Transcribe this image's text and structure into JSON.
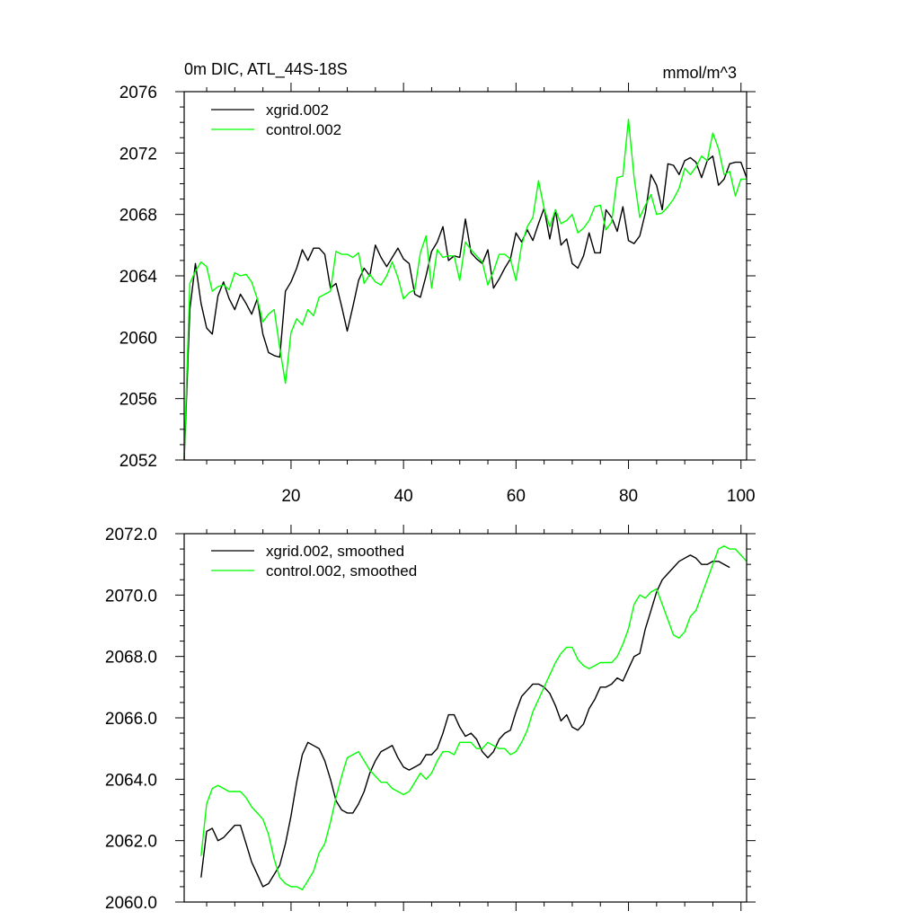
{
  "chart_data": [
    {
      "type": "line",
      "title": "0m DIC, ATL_44S-18S",
      "units": "mmol/m^3",
      "xlim": [
        1,
        101
      ],
      "ylim": [
        2052,
        2076
      ],
      "xticks": [
        20,
        40,
        60,
        80,
        100
      ],
      "xtick_labels": [
        "20",
        "40",
        "60",
        "80",
        "100"
      ],
      "yticks": [
        2052,
        2056,
        2060,
        2064,
        2068,
        2072,
        2076
      ],
      "ytick_labels": [
        "2052",
        "2056",
        "2060",
        "2064",
        "2068",
        "2072",
        "2076"
      ],
      "legend_position": "top-left",
      "series": [
        {
          "name": "xgrid.002",
          "color": "#000000",
          "x_start": 1,
          "values": [
            2052.0,
            2061.8,
            2064.8,
            2062.2,
            2060.6,
            2060.2,
            2062.7,
            2063.6,
            2062.5,
            2061.8,
            2062.8,
            2062.2,
            2061.5,
            2062.5,
            2060.2,
            2059.0,
            2058.8,
            2058.7,
            2063.0,
            2063.6,
            2064.5,
            2065.7,
            2065.0,
            2065.8,
            2065.8,
            2065.4,
            2063.2,
            2063.5,
            2062.0,
            2060.4,
            2062.0,
            2063.7,
            2064.5,
            2064.0,
            2066.0,
            2065.2,
            2064.6,
            2065.2,
            2065.8,
            2065.1,
            2064.8,
            2062.8,
            2062.6,
            2064.0,
            2065.6,
            2066.2,
            2067.2,
            2065.0,
            2065.3,
            2065.2,
            2067.7,
            2065.5,
            2065.1,
            2064.8,
            2065.7,
            2063.2,
            2063.8,
            2064.5,
            2065.1,
            2066.8,
            2066.2,
            2067.0,
            2066.3,
            2067.4,
            2068.4,
            2066.4,
            2068.3,
            2066.0,
            2066.4,
            2064.8,
            2064.5,
            2065.3,
            2066.8,
            2065.5,
            2065.5,
            2068.3,
            2067.8,
            2066.9,
            2068.5,
            2066.3,
            2066.1,
            2066.6,
            2068.1,
            2070.6,
            2069.9,
            2068.3,
            2071.3,
            2071.2,
            2070.6,
            2071.5,
            2071.7,
            2071.4,
            2070.4,
            2071.5,
            2071.8,
            2069.9,
            2070.3,
            2071.3,
            2071.4,
            2071.4,
            2070.4
          ]
        },
        {
          "name": "control.002",
          "color": "#00ff00",
          "x_start": 1,
          "values": [
            2052.2,
            2063.5,
            2064.3,
            2064.9,
            2064.6,
            2063.0,
            2063.3,
            2063.4,
            2063.1,
            2064.2,
            2064.0,
            2064.1,
            2063.6,
            2062.5,
            2061.0,
            2061.5,
            2061.8,
            2059.3,
            2057.0,
            2060.3,
            2061.2,
            2060.8,
            2061.8,
            2061.4,
            2062.6,
            2062.8,
            2063.0,
            2065.6,
            2065.4,
            2065.4,
            2065.2,
            2065.5,
            2063.5,
            2064.1,
            2063.6,
            2063.4,
            2064.0,
            2064.9,
            2063.9,
            2062.5,
            2062.9,
            2063.1,
            2065.5,
            2066.6,
            2063.2,
            2065.7,
            2065.2,
            2065.3,
            2065.3,
            2063.7,
            2066.2,
            2065.7,
            2065.3,
            2064.9,
            2063.4,
            2064.3,
            2065.4,
            2065.4,
            2065.1,
            2063.7,
            2066.0,
            2067.2,
            2067.8,
            2070.2,
            2068.4,
            2067.2,
            2068.3,
            2067.4,
            2067.6,
            2068.0,
            2066.8,
            2067.1,
            2067.6,
            2068.5,
            2068.6,
            2067.0,
            2067.5,
            2070.4,
            2070.5,
            2074.2,
            2070.4,
            2067.8,
            2068.6,
            2069.3,
            2068.0,
            2068.1,
            2068.5,
            2069.0,
            2069.7,
            2071.0,
            2070.6,
            2071.1,
            2071.8,
            2071.5,
            2073.3,
            2072.3,
            2070.6,
            2070.8,
            2069.2,
            2070.3,
            2070.3
          ]
        }
      ]
    },
    {
      "type": "line",
      "title": "",
      "xlim": [
        1,
        101
      ],
      "ylim": [
        2060.0,
        2072.0
      ],
      "xticks": [
        20,
        40,
        60,
        80,
        100
      ],
      "yticks": [
        2060.0,
        2062.0,
        2064.0,
        2066.0,
        2068.0,
        2070.0,
        2072.0
      ],
      "ytick_labels": [
        "2060.0",
        "2062.0",
        "2064.0",
        "2066.0",
        "2068.0",
        "2070.0",
        "2072.0"
      ],
      "legend_position": "top-left",
      "series": [
        {
          "name": "xgrid.002, smoothed",
          "color": "#000000",
          "x_start": 4,
          "values": [
            2060.8,
            2062.3,
            2062.4,
            2062.0,
            2062.1,
            2062.3,
            2062.5,
            2062.5,
            2061.9,
            2061.3,
            2060.9,
            2060.5,
            2060.6,
            2060.9,
            2061.2,
            2061.9,
            2062.8,
            2063.9,
            2064.8,
            2065.2,
            2065.1,
            2065.0,
            2064.6,
            2064.0,
            2063.3,
            2063.0,
            2062.9,
            2062.9,
            2063.2,
            2063.6,
            2064.2,
            2064.6,
            2064.9,
            2065.0,
            2065.1,
            2064.7,
            2064.4,
            2064.3,
            2064.4,
            2064.5,
            2064.8,
            2064.8,
            2065.0,
            2065.5,
            2066.1,
            2066.1,
            2065.7,
            2065.4,
            2065.5,
            2065.3,
            2064.9,
            2064.7,
            2064.9,
            2065.3,
            2065.5,
            2065.6,
            2066.2,
            2066.7,
            2066.9,
            2067.1,
            2067.1,
            2067.0,
            2066.8,
            2066.4,
            2065.9,
            2066.1,
            2065.7,
            2065.6,
            2065.8,
            2066.3,
            2066.6,
            2067.0,
            2067.0,
            2067.1,
            2067.3,
            2067.2,
            2067.6,
            2068.0,
            2068.1,
            2068.9,
            2069.5,
            2070.1,
            2070.5,
            2070.7,
            2070.9,
            2071.1,
            2071.2,
            2071.3,
            2071.2,
            2071.0,
            2071.0,
            2071.1,
            2071.1,
            2071.0,
            2070.9
          ]
        },
        {
          "name": "control.002, smoothed",
          "color": "#00ff00",
          "x_start": 4,
          "values": [
            2061.5,
            2063.2,
            2063.7,
            2063.8,
            2063.7,
            2063.6,
            2063.6,
            2063.6,
            2063.4,
            2063.1,
            2062.9,
            2062.7,
            2062.2,
            2061.4,
            2060.8,
            2060.6,
            2060.5,
            2060.5,
            2060.4,
            2060.7,
            2061.0,
            2061.6,
            2061.9,
            2062.6,
            2063.4,
            2064.1,
            2064.7,
            2064.8,
            2064.9,
            2064.6,
            2064.3,
            2064.1,
            2063.9,
            2063.9,
            2063.7,
            2063.6,
            2063.5,
            2063.6,
            2063.9,
            2064.2,
            2064.0,
            2064.2,
            2064.6,
            2064.9,
            2064.9,
            2064.8,
            2065.2,
            2065.2,
            2065.2,
            2065.0,
            2065.0,
            2065.2,
            2065.1,
            2065.0,
            2065.0,
            2064.8,
            2064.9,
            2065.2,
            2065.6,
            2066.2,
            2066.6,
            2067.0,
            2067.4,
            2067.8,
            2068.1,
            2068.3,
            2068.3,
            2067.9,
            2067.7,
            2067.6,
            2067.7,
            2067.8,
            2067.8,
            2067.8,
            2068.0,
            2068.4,
            2068.9,
            2069.7,
            2070.0,
            2069.9,
            2070.1,
            2070.2,
            2069.7,
            2069.2,
            2068.7,
            2068.6,
            2068.8,
            2069.3,
            2069.5,
            2070.0,
            2070.5,
            2071.0,
            2071.5,
            2071.6,
            2071.5,
            2071.5,
            2071.3,
            2071.1
          ]
        }
      ]
    }
  ]
}
